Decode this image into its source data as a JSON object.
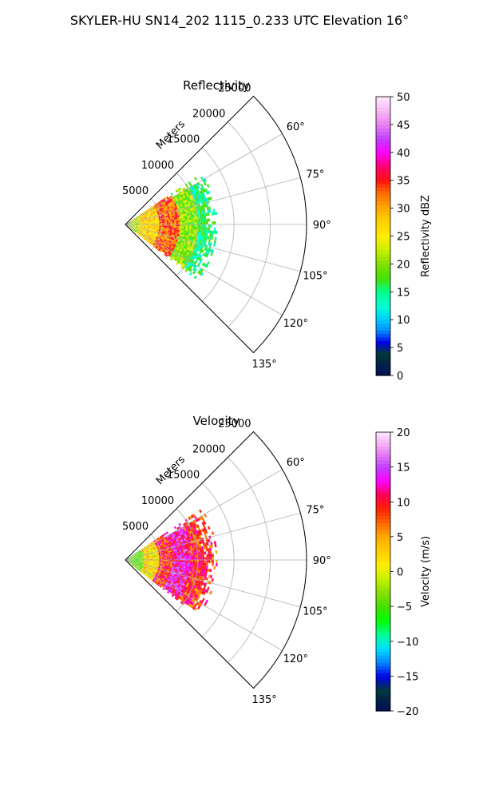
{
  "figure": {
    "suptitle": "SKYLER-HU  SN14_202  1115_0.233 UTC Elevation 16°"
  },
  "chart_data": [
    {
      "type": "heatmap",
      "subtype": "radar-sector-ppi",
      "title": "Reflectivity",
      "radial_axis_label": "Meters",
      "radial_ticks": [
        "5000",
        "10000",
        "15000",
        "20000",
        "25000"
      ],
      "radial_tick_values": [
        5000,
        10000,
        15000,
        20000,
        25000
      ],
      "radial_range": [
        0,
        25000
      ],
      "azimuth_ticks": [
        "60°",
        "75°",
        "90°",
        "105°",
        "120°",
        "135°"
      ],
      "azimuth_tick_values": [
        60,
        75,
        90,
        105,
        120,
        135
      ],
      "azimuth_range": [
        45,
        135
      ],
      "grid": true,
      "colorbar": {
        "label": "Reflectivity dBZ",
        "range": [
          0,
          50
        ],
        "ticks": [
          "0",
          "5",
          "10",
          "15",
          "20",
          "25",
          "30",
          "35",
          "40",
          "45",
          "50"
        ],
        "tick_values": [
          0,
          5,
          10,
          15,
          20,
          25,
          30,
          35,
          40,
          45,
          50
        ],
        "stops": [
          {
            "v": 0,
            "c": "#001050"
          },
          {
            "v": 2,
            "c": "#00204a"
          },
          {
            "v": 4,
            "c": "#003a3a"
          },
          {
            "v": 6,
            "c": "#0000ee"
          },
          {
            "v": 8,
            "c": "#0088ff"
          },
          {
            "v": 10,
            "c": "#00ccff"
          },
          {
            "v": 12.5,
            "c": "#00ffd0"
          },
          {
            "v": 15,
            "c": "#00ff90"
          },
          {
            "v": 17.5,
            "c": "#44e000"
          },
          {
            "v": 20,
            "c": "#80e000"
          },
          {
            "v": 22.5,
            "c": "#c8f000"
          },
          {
            "v": 25,
            "c": "#ffee00"
          },
          {
            "v": 28,
            "c": "#ffcc00"
          },
          {
            "v": 30,
            "c": "#ffaa00"
          },
          {
            "v": 33,
            "c": "#ff6600"
          },
          {
            "v": 35,
            "c": "#ff1010"
          },
          {
            "v": 37.5,
            "c": "#ff0070"
          },
          {
            "v": 40,
            "c": "#ff00ff"
          },
          {
            "v": 42.5,
            "c": "#c040ff"
          },
          {
            "v": 45,
            "c": "#e880f0"
          },
          {
            "v": 47.5,
            "c": "#f4b8f4"
          },
          {
            "v": 50,
            "c": "#ffe8ff"
          }
        ]
      },
      "data_extent": {
        "r_min": 0,
        "r_max": 12500,
        "az_min": 56,
        "az_max": 128
      },
      "value_bands": [
        {
          "r": [
            0,
            2000
          ],
          "value": 22
        },
        {
          "r": [
            2000,
            4500
          ],
          "value": 27
        },
        {
          "r": [
            4500,
            7500
          ],
          "value": 33
        },
        {
          "r": [
            7500,
            10000
          ],
          "value": 20
        },
        {
          "r": [
            10000,
            12500
          ],
          "value": 15
        }
      ]
    },
    {
      "type": "heatmap",
      "subtype": "radar-sector-ppi",
      "title": "Velocity",
      "radial_axis_label": "Meters",
      "radial_ticks": [
        "5000",
        "10000",
        "15000",
        "20000",
        "25000"
      ],
      "radial_tick_values": [
        5000,
        10000,
        15000,
        20000,
        25000
      ],
      "radial_range": [
        0,
        25000
      ],
      "azimuth_ticks": [
        "60°",
        "75°",
        "90°",
        "105°",
        "120°",
        "135°"
      ],
      "azimuth_tick_values": [
        60,
        75,
        90,
        105,
        120,
        135
      ],
      "azimuth_range": [
        45,
        135
      ],
      "grid": true,
      "colorbar": {
        "label": "Velocity (m/s)",
        "range": [
          -20,
          20
        ],
        "ticks": [
          "−20",
          "−15",
          "−10",
          "−5",
          "0",
          "5",
          "10",
          "15",
          "20"
        ],
        "tick_values": [
          -20,
          -15,
          -10,
          -5,
          0,
          5,
          10,
          15,
          20
        ],
        "stops": [
          {
            "v": -20,
            "c": "#001050"
          },
          {
            "v": -18.5,
            "c": "#00204a"
          },
          {
            "v": -17,
            "c": "#003a3a"
          },
          {
            "v": -15,
            "c": "#0000ee"
          },
          {
            "v": -13,
            "c": "#0088ff"
          },
          {
            "v": -11,
            "c": "#00e0ff"
          },
          {
            "v": -9,
            "c": "#00ff90"
          },
          {
            "v": -7,
            "c": "#00ff00"
          },
          {
            "v": -5,
            "c": "#44e000"
          },
          {
            "v": -3,
            "c": "#88e000"
          },
          {
            "v": -1,
            "c": "#c8f000"
          },
          {
            "v": 1,
            "c": "#ffee00"
          },
          {
            "v": 3,
            "c": "#ffcc00"
          },
          {
            "v": 5,
            "c": "#ffaa00"
          },
          {
            "v": 7,
            "c": "#ff6600"
          },
          {
            "v": 9,
            "c": "#ff2200"
          },
          {
            "v": 11,
            "c": "#ff0050"
          },
          {
            "v": 13,
            "c": "#ff00ff"
          },
          {
            "v": 15,
            "c": "#c040ff"
          },
          {
            "v": 17,
            "c": "#e880f0"
          },
          {
            "v": 18.5,
            "c": "#f4b8f4"
          },
          {
            "v": 20,
            "c": "#ffe8ff"
          }
        ]
      },
      "data_extent": {
        "r_min": 0,
        "r_max": 12500,
        "az_min": 56,
        "az_max": 128
      },
      "value_bands": [
        {
          "r": [
            0,
            2500
          ],
          "value": -4
        },
        {
          "r": [
            2500,
            4500
          ],
          "value": 2
        },
        {
          "r": [
            4500,
            6500
          ],
          "value": 9
        },
        {
          "r": [
            6500,
            9000
          ],
          "value": 13
        },
        {
          "r": [
            9000,
            12500
          ],
          "value": 9
        }
      ]
    }
  ]
}
